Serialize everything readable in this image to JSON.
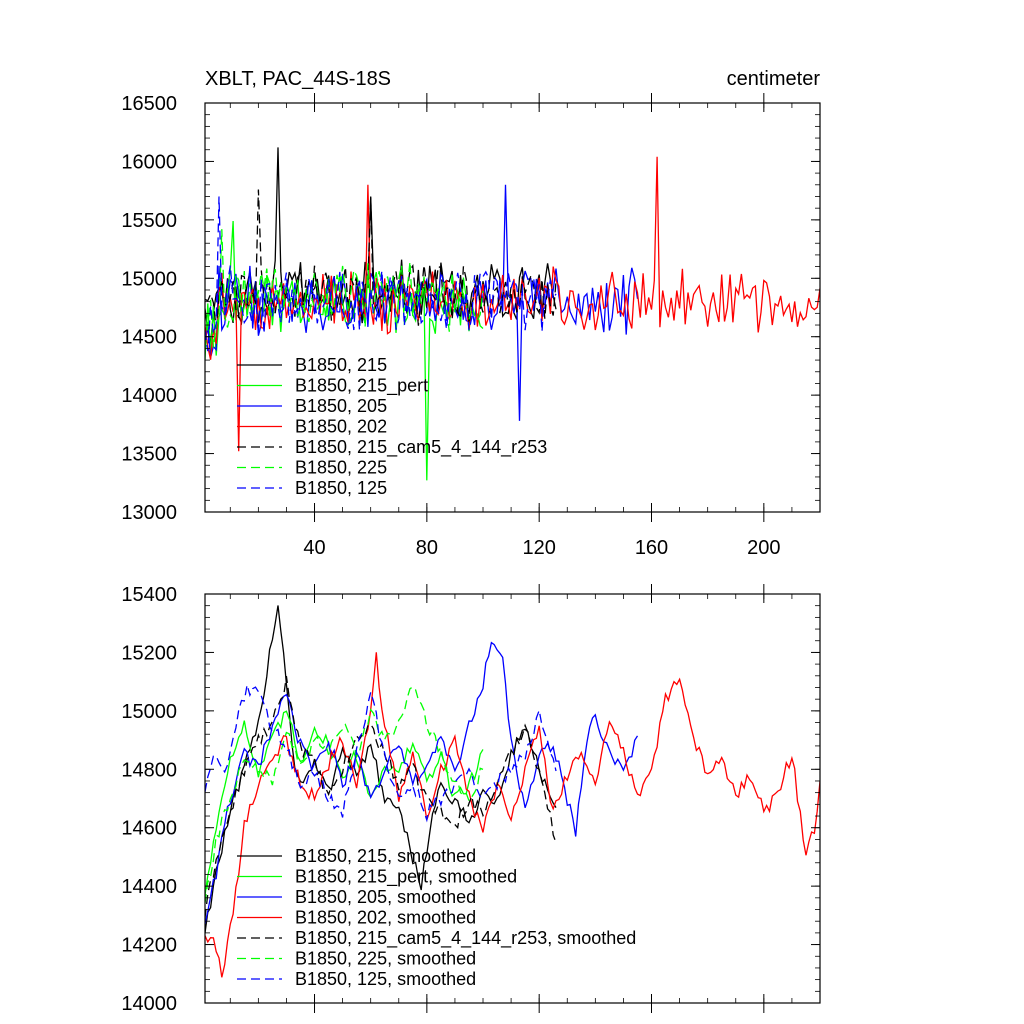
{
  "figure": {
    "title_left": "XBLT, PAC_44S-18S",
    "title_right": "centimeter"
  },
  "chart_data": [
    {
      "type": "line",
      "title": "XBLT, PAC_44S-18S",
      "units": "centimeter",
      "xlim": [
        1,
        220
      ],
      "ylim": [
        13000,
        16500
      ],
      "xticks": [
        40,
        80,
        120,
        160,
        200
      ],
      "yticks": [
        13000,
        13500,
        14000,
        14500,
        15000,
        15500,
        16000,
        16500
      ],
      "legend_position": "lower-left",
      "series": [
        {
          "name": "B1850, 215",
          "color": "#000000",
          "dash": "solid",
          "n": 126,
          "mean": 14880,
          "amp": 300,
          "peaks": [
            [
              27,
              16120
            ],
            [
              60,
              15700
            ]
          ]
        },
        {
          "name": "B1850, 215_pert",
          "color": "#00ff00",
          "dash": "solid",
          "n": 100,
          "mean": 14800,
          "amp": 320,
          "peaks": [
            [
              80,
              13270
            ],
            [
              11,
              15490
            ]
          ]
        },
        {
          "name": "B1850, 205",
          "color": "#0000ff",
          "dash": "solid",
          "n": 155,
          "mean": 14800,
          "amp": 330,
          "peaks": [
            [
              108,
              15800
            ],
            [
              113,
              13780
            ]
          ]
        },
        {
          "name": "B1850, 202",
          "color": "#ff0000",
          "dash": "solid",
          "n": 220,
          "mean": 14800,
          "amp": 330,
          "peaks": [
            [
              162,
              16040
            ],
            [
              59,
              15800
            ],
            [
              13,
              13520
            ]
          ]
        },
        {
          "name": "B1850, 215_cam5_4_144_r253",
          "color": "#000000",
          "dash": "dashed",
          "n": 126,
          "mean": 14880,
          "amp": 300,
          "peaks": [
            [
              20,
              15760
            ],
            [
              60,
              15700
            ]
          ]
        },
        {
          "name": "B1850, 225",
          "color": "#00ff00",
          "dash": "dashed",
          "n": 100,
          "mean": 14850,
          "amp": 320,
          "peaks": [
            [
              7,
              15420
            ]
          ]
        },
        {
          "name": "B1850, 125",
          "color": "#0000ff",
          "dash": "dashed",
          "n": 126,
          "mean": 14820,
          "amp": 320,
          "peaks": [
            [
              6,
              15700
            ]
          ]
        }
      ]
    },
    {
      "type": "line",
      "xlim": [
        1,
        220
      ],
      "ylim": [
        14000,
        15400
      ],
      "xticks": [
        40,
        80,
        120,
        160,
        200
      ],
      "yticks": [
        14000,
        14200,
        14400,
        14600,
        14800,
        15000,
        15200,
        15400
      ],
      "legend_position": "lower-left",
      "series": [
        {
          "name": "B1850, 215, smoothed",
          "color": "#000000",
          "dash": "solid",
          "n": 126,
          "keys": [
            [
              1,
              14250
            ],
            [
              5,
              14450
            ],
            [
              10,
              14650
            ],
            [
              15,
              14800
            ],
            [
              20,
              14950
            ],
            [
              24,
              15200
            ],
            [
              27,
              15370
            ],
            [
              30,
              15100
            ],
            [
              33,
              14800
            ],
            [
              36,
              14750
            ],
            [
              40,
              14820
            ],
            [
              45,
              14720
            ],
            [
              50,
              14880
            ],
            [
              55,
              14780
            ],
            [
              60,
              14880
            ],
            [
              65,
              14700
            ],
            [
              70,
              14650
            ],
            [
              75,
              14500
            ],
            [
              78,
              14400
            ],
            [
              81,
              14600
            ],
            [
              85,
              14750
            ],
            [
              90,
              14680
            ],
            [
              95,
              14620
            ],
            [
              100,
              14720
            ],
            [
              105,
              14680
            ],
            [
              110,
              14850
            ],
            [
              115,
              14950
            ],
            [
              120,
              14800
            ],
            [
              126,
              14650
            ]
          ]
        },
        {
          "name": "B1850, 215_pert, smoothed",
          "color": "#00ff00",
          "dash": "solid",
          "n": 100,
          "keys": [
            [
              1,
              14380
            ],
            [
              5,
              14600
            ],
            [
              10,
              14850
            ],
            [
              15,
              14950
            ],
            [
              20,
              14780
            ],
            [
              25,
              14900
            ],
            [
              30,
              15000
            ],
            [
              35,
              14820
            ],
            [
              40,
              14950
            ],
            [
              45,
              14880
            ],
            [
              50,
              14780
            ],
            [
              55,
              14850
            ],
            [
              60,
              14700
            ],
            [
              65,
              14820
            ],
            [
              70,
              14780
            ],
            [
              75,
              14900
            ],
            [
              80,
              14750
            ],
            [
              85,
              14850
            ],
            [
              90,
              14700
            ],
            [
              95,
              14750
            ],
            [
              100,
              14850
            ]
          ]
        },
        {
          "name": "B1850, 205, smoothed",
          "color": "#0000ff",
          "dash": "solid",
          "n": 155,
          "keys": [
            [
              1,
              14280
            ],
            [
              5,
              14450
            ],
            [
              10,
              14700
            ],
            [
              15,
              14850
            ],
            [
              20,
              14800
            ],
            [
              25,
              14950
            ],
            [
              30,
              15050
            ],
            [
              35,
              14880
            ],
            [
              40,
              14800
            ],
            [
              45,
              14900
            ],
            [
              50,
              14750
            ],
            [
              55,
              14850
            ],
            [
              60,
              14700
            ],
            [
              65,
              14800
            ],
            [
              70,
              14880
            ],
            [
              75,
              14750
            ],
            [
              80,
              14820
            ],
            [
              85,
              14900
            ],
            [
              90,
              14780
            ],
            [
              95,
              14950
            ],
            [
              100,
              15100
            ],
            [
              103,
              15220
            ],
            [
              107,
              15180
            ],
            [
              110,
              14900
            ],
            [
              115,
              14650
            ],
            [
              120,
              14850
            ],
            [
              125,
              14880
            ],
            [
              130,
              14700
            ],
            [
              133,
              14580
            ],
            [
              137,
              14900
            ],
            [
              140,
              14980
            ],
            [
              145,
              14850
            ],
            [
              150,
              14800
            ],
            [
              155,
              14900
            ]
          ]
        },
        {
          "name": "B1850, 202, smoothed",
          "color": "#ff0000",
          "dash": "solid",
          "n": 220,
          "keys": [
            [
              1,
              14240
            ],
            [
              4,
              14200
            ],
            [
              7,
              14100
            ],
            [
              10,
              14250
            ],
            [
              15,
              14600
            ],
            [
              20,
              14750
            ],
            [
              25,
              14850
            ],
            [
              30,
              14900
            ],
            [
              35,
              14750
            ],
            [
              40,
              14700
            ],
            [
              45,
              14820
            ],
            [
              50,
              14900
            ],
            [
              55,
              14750
            ],
            [
              60,
              15000
            ],
            [
              62,
              15180
            ],
            [
              65,
              14950
            ],
            [
              70,
              14700
            ],
            [
              75,
              14850
            ],
            [
              80,
              14650
            ],
            [
              85,
              14800
            ],
            [
              90,
              14900
            ],
            [
              95,
              14700
            ],
            [
              100,
              14600
            ],
            [
              105,
              14750
            ],
            [
              110,
              14650
            ],
            [
              115,
              14800
            ],
            [
              120,
              14950
            ],
            [
              125,
              14650
            ],
            [
              130,
              14780
            ],
            [
              135,
              14850
            ],
            [
              140,
              14750
            ],
            [
              145,
              14980
            ],
            [
              150,
              14850
            ],
            [
              155,
              14700
            ],
            [
              160,
              14800
            ],
            [
              165,
              15050
            ],
            [
              170,
              15100
            ],
            [
              175,
              14900
            ],
            [
              180,
              14780
            ],
            [
              185,
              14850
            ],
            [
              190,
              14700
            ],
            [
              195,
              14780
            ],
            [
              200,
              14650
            ],
            [
              205,
              14720
            ],
            [
              210,
              14850
            ],
            [
              215,
              14500
            ],
            [
              218,
              14600
            ],
            [
              220,
              14760
            ]
          ]
        },
        {
          "name": "B1850, 215_cam5_4_144_r253, smoothed",
          "color": "#000000",
          "dash": "dashed",
          "n": 126,
          "keys": [
            [
              1,
              14300
            ],
            [
              5,
              14500
            ],
            [
              10,
              14650
            ],
            [
              15,
              14800
            ],
            [
              20,
              14900
            ],
            [
              25,
              14950
            ],
            [
              30,
              15100
            ],
            [
              35,
              14880
            ],
            [
              40,
              14820
            ],
            [
              45,
              14700
            ],
            [
              50,
              14800
            ],
            [
              55,
              14900
            ],
            [
              60,
              14950
            ],
            [
              65,
              14850
            ],
            [
              70,
              14750
            ],
            [
              75,
              14800
            ],
            [
              80,
              14700
            ],
            [
              85,
              14650
            ],
            [
              90,
              14600
            ],
            [
              95,
              14700
            ],
            [
              100,
              14650
            ],
            [
              105,
              14750
            ],
            [
              110,
              14850
            ],
            [
              115,
              14950
            ],
            [
              120,
              14800
            ],
            [
              126,
              14550
            ]
          ]
        },
        {
          "name": "B1850, 225, smoothed",
          "color": "#00ff00",
          "dash": "dashed",
          "n": 100,
          "keys": [
            [
              1,
              14350
            ],
            [
              5,
              14550
            ],
            [
              10,
              14700
            ],
            [
              15,
              14850
            ],
            [
              20,
              14800
            ],
            [
              25,
              14750
            ],
            [
              30,
              14950
            ],
            [
              35,
              14800
            ],
            [
              40,
              14900
            ],
            [
              45,
              14850
            ],
            [
              50,
              14950
            ],
            [
              55,
              14850
            ],
            [
              60,
              15000
            ],
            [
              65,
              14900
            ],
            [
              70,
              14950
            ],
            [
              75,
              15100
            ],
            [
              80,
              14950
            ],
            [
              85,
              14850
            ],
            [
              90,
              14750
            ],
            [
              95,
              14700
            ],
            [
              100,
              14800
            ]
          ]
        },
        {
          "name": "B1850, 125, smoothed",
          "color": "#0000ff",
          "dash": "dashed",
          "n": 126,
          "keys": [
            [
              1,
              14730
            ],
            [
              4,
              14850
            ],
            [
              8,
              14800
            ],
            [
              12,
              14950
            ],
            [
              16,
              15080
            ],
            [
              20,
              15050
            ],
            [
              25,
              14950
            ],
            [
              30,
              14880
            ],
            [
              35,
              14750
            ],
            [
              40,
              14800
            ],
            [
              45,
              14700
            ],
            [
              50,
              14650
            ],
            [
              55,
              14850
            ],
            [
              60,
              15060
            ],
            [
              65,
              14850
            ],
            [
              70,
              14700
            ],
            [
              75,
              14750
            ],
            [
              80,
              14650
            ],
            [
              85,
              14700
            ],
            [
              90,
              14750
            ],
            [
              95,
              14800
            ],
            [
              100,
              14700
            ],
            [
              105,
              14750
            ],
            [
              110,
              14800
            ],
            [
              115,
              14850
            ],
            [
              120,
              15000
            ],
            [
              126,
              14780
            ]
          ]
        }
      ]
    }
  ]
}
